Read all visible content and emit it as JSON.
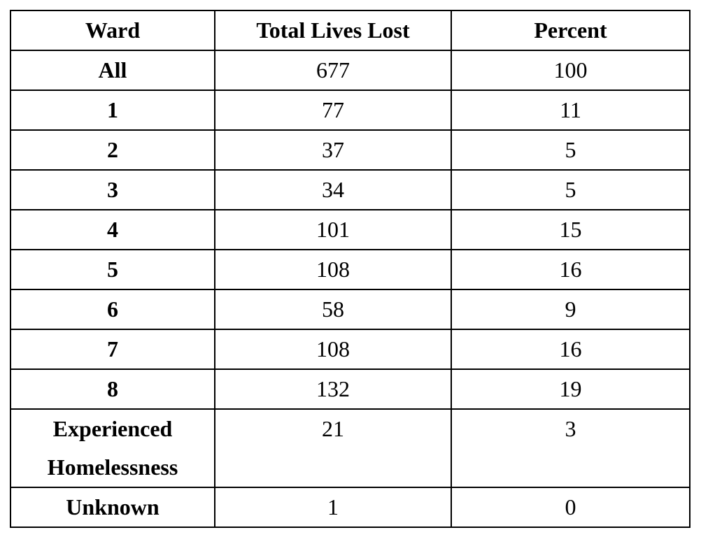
{
  "table": {
    "columns": [
      {
        "key": "ward",
        "label": "Ward"
      },
      {
        "key": "total",
        "label": "Total Lives Lost"
      },
      {
        "key": "percent",
        "label": "Percent"
      }
    ],
    "rows": [
      {
        "ward": "All",
        "total": "677",
        "percent": "100"
      },
      {
        "ward": "1",
        "total": "77",
        "percent": "11"
      },
      {
        "ward": "2",
        "total": "37",
        "percent": "5"
      },
      {
        "ward": "3",
        "total": "34",
        "percent": "5"
      },
      {
        "ward": "4",
        "total": "101",
        "percent": "15"
      },
      {
        "ward": "5",
        "total": "108",
        "percent": "16"
      },
      {
        "ward": "6",
        "total": "58",
        "percent": "9"
      },
      {
        "ward": "7",
        "total": "108",
        "percent": "16"
      },
      {
        "ward": "8",
        "total": "132",
        "percent": "19"
      },
      {
        "ward": "Experienced Homelessness",
        "total": "21",
        "percent": "3"
      },
      {
        "ward": "Unknown",
        "total": "1",
        "percent": "0"
      }
    ],
    "colors": {
      "border": "#000000",
      "text": "#000000",
      "background": "#ffffff"
    }
  }
}
